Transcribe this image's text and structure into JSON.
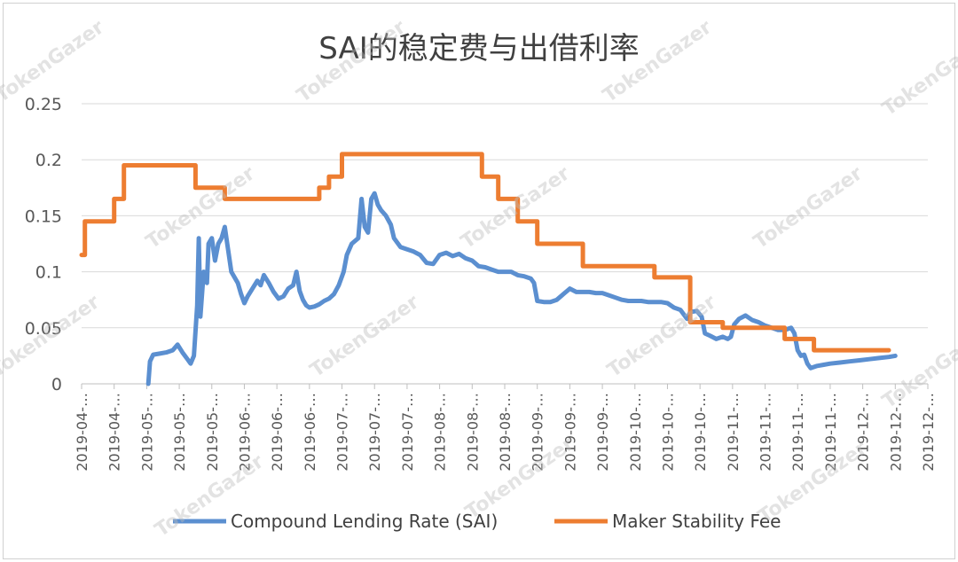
{
  "chart_data": {
    "type": "line",
    "title": "SAI的稳定费与出借利率",
    "xlabel": "",
    "ylabel": "",
    "ylim": [
      0,
      0.25
    ],
    "yticks": [
      "0",
      "0.05",
      "0.1",
      "0.15",
      "0.2",
      "0.25"
    ],
    "grid": true,
    "legend_position": "bottom",
    "x_tick_labels": [
      "2019-04-…",
      "2019-04-…",
      "2019-05-…",
      "2019-05-…",
      "2019-05-…",
      "2019-06-…",
      "2019-06-…",
      "2019-06-…",
      "2019-07-…",
      "2019-07-…",
      "2019-07-…",
      "2019-08-…",
      "2019-08-…",
      "2019-08-…",
      "2019-09-…",
      "2019-09-…",
      "2019-09-…",
      "2019-10-…",
      "2019-10-…",
      "2019-10-…",
      "2019-11-…",
      "2019-11-…",
      "2019-11-…",
      "2019-11-…",
      "2019-12-…",
      "2019-12-…",
      "2019-12-…"
    ],
    "series": [
      {
        "name": "Compound Lending Rate (SAI)",
        "color": "#5B8FD0",
        "points": [
          [
            2.05,
            0.0
          ],
          [
            2.1,
            0.02
          ],
          [
            2.2,
            0.026
          ],
          [
            2.4,
            0.027
          ],
          [
            2.6,
            0.028
          ],
          [
            2.8,
            0.03
          ],
          [
            2.95,
            0.035
          ],
          [
            3.1,
            0.028
          ],
          [
            3.25,
            0.022
          ],
          [
            3.35,
            0.018
          ],
          [
            3.45,
            0.025
          ],
          [
            3.55,
            0.07
          ],
          [
            3.6,
            0.13
          ],
          [
            3.65,
            0.06
          ],
          [
            3.75,
            0.1
          ],
          [
            3.85,
            0.09
          ],
          [
            3.9,
            0.125
          ],
          [
            4.0,
            0.13
          ],
          [
            4.1,
            0.11
          ],
          [
            4.2,
            0.125
          ],
          [
            4.3,
            0.13
          ],
          [
            4.4,
            0.14
          ],
          [
            4.5,
            0.12
          ],
          [
            4.6,
            0.1
          ],
          [
            4.8,
            0.09
          ],
          [
            4.9,
            0.08
          ],
          [
            5.0,
            0.072
          ],
          [
            5.1,
            0.078
          ],
          [
            5.25,
            0.085
          ],
          [
            5.4,
            0.092
          ],
          [
            5.5,
            0.088
          ],
          [
            5.6,
            0.097
          ],
          [
            5.75,
            0.09
          ],
          [
            5.9,
            0.082
          ],
          [
            6.05,
            0.076
          ],
          [
            6.2,
            0.078
          ],
          [
            6.35,
            0.085
          ],
          [
            6.5,
            0.088
          ],
          [
            6.6,
            0.1
          ],
          [
            6.7,
            0.083
          ],
          [
            6.8,
            0.075
          ],
          [
            6.9,
            0.07
          ],
          [
            7.0,
            0.068
          ],
          [
            7.15,
            0.069
          ],
          [
            7.3,
            0.071
          ],
          [
            7.45,
            0.074
          ],
          [
            7.6,
            0.076
          ],
          [
            7.75,
            0.08
          ],
          [
            7.9,
            0.088
          ],
          [
            8.05,
            0.1
          ],
          [
            8.15,
            0.115
          ],
          [
            8.3,
            0.125
          ],
          [
            8.5,
            0.13
          ],
          [
            8.6,
            0.165
          ],
          [
            8.7,
            0.14
          ],
          [
            8.8,
            0.135
          ],
          [
            8.9,
            0.165
          ],
          [
            9.0,
            0.17
          ],
          [
            9.1,
            0.16
          ],
          [
            9.2,
            0.155
          ],
          [
            9.35,
            0.15
          ],
          [
            9.5,
            0.142
          ],
          [
            9.6,
            0.13
          ],
          [
            9.8,
            0.122
          ],
          [
            10.0,
            0.12
          ],
          [
            10.2,
            0.118
          ],
          [
            10.4,
            0.115
          ],
          [
            10.6,
            0.108
          ],
          [
            10.8,
            0.107
          ],
          [
            11.0,
            0.115
          ],
          [
            11.2,
            0.117
          ],
          [
            11.4,
            0.114
          ],
          [
            11.6,
            0.116
          ],
          [
            11.8,
            0.112
          ],
          [
            12.0,
            0.11
          ],
          [
            12.2,
            0.105
          ],
          [
            12.4,
            0.104
          ],
          [
            12.6,
            0.102
          ],
          [
            12.8,
            0.1
          ],
          [
            13.0,
            0.1
          ],
          [
            13.2,
            0.1
          ],
          [
            13.4,
            0.097
          ],
          [
            13.6,
            0.096
          ],
          [
            13.8,
            0.094
          ],
          [
            13.9,
            0.09
          ],
          [
            14.0,
            0.074
          ],
          [
            14.2,
            0.073
          ],
          [
            14.4,
            0.073
          ],
          [
            14.6,
            0.075
          ],
          [
            14.8,
            0.08
          ],
          [
            15.0,
            0.085
          ],
          [
            15.2,
            0.082
          ],
          [
            15.4,
            0.082
          ],
          [
            15.6,
            0.082
          ],
          [
            15.8,
            0.081
          ],
          [
            16.0,
            0.081
          ],
          [
            16.2,
            0.079
          ],
          [
            16.4,
            0.077
          ],
          [
            16.6,
            0.075
          ],
          [
            16.8,
            0.074
          ],
          [
            17.0,
            0.074
          ],
          [
            17.2,
            0.074
          ],
          [
            17.4,
            0.073
          ],
          [
            17.6,
            0.073
          ],
          [
            17.8,
            0.073
          ],
          [
            18.0,
            0.072
          ],
          [
            18.2,
            0.068
          ],
          [
            18.4,
            0.066
          ],
          [
            18.5,
            0.062
          ],
          [
            18.6,
            0.058
          ],
          [
            18.7,
            0.064
          ],
          [
            18.9,
            0.065
          ],
          [
            19.05,
            0.06
          ],
          [
            19.15,
            0.045
          ],
          [
            19.3,
            0.043
          ],
          [
            19.5,
            0.04
          ],
          [
            19.7,
            0.042
          ],
          [
            19.85,
            0.04
          ],
          [
            19.95,
            0.042
          ],
          [
            20.05,
            0.053
          ],
          [
            20.2,
            0.058
          ],
          [
            20.4,
            0.061
          ],
          [
            20.6,
            0.057
          ],
          [
            20.8,
            0.055
          ],
          [
            21.0,
            0.052
          ],
          [
            21.2,
            0.05
          ],
          [
            21.4,
            0.048
          ],
          [
            21.6,
            0.048
          ],
          [
            21.8,
            0.05
          ],
          [
            21.9,
            0.045
          ],
          [
            22.0,
            0.03
          ],
          [
            22.1,
            0.025
          ],
          [
            22.2,
            0.026
          ],
          [
            22.3,
            0.018
          ],
          [
            22.4,
            0.014
          ],
          [
            22.6,
            0.016
          ],
          [
            22.8,
            0.017
          ],
          [
            23.0,
            0.018
          ],
          [
            23.3,
            0.019
          ],
          [
            23.6,
            0.02
          ],
          [
            23.9,
            0.021
          ],
          [
            24.2,
            0.022
          ],
          [
            24.5,
            0.023
          ],
          [
            24.8,
            0.024
          ],
          [
            25.0,
            0.025
          ]
        ]
      },
      {
        "name": "Maker Stability Fee",
        "color": "#ED7D31",
        "points": [
          [
            0.0,
            0.115
          ],
          [
            0.1,
            0.115
          ],
          [
            0.1,
            0.145
          ],
          [
            1.0,
            0.145
          ],
          [
            1.0,
            0.165
          ],
          [
            1.3,
            0.165
          ],
          [
            1.3,
            0.195
          ],
          [
            3.5,
            0.195
          ],
          [
            3.5,
            0.175
          ],
          [
            4.4,
            0.175
          ],
          [
            4.4,
            0.165
          ],
          [
            7.3,
            0.165
          ],
          [
            7.3,
            0.175
          ],
          [
            7.6,
            0.175
          ],
          [
            7.6,
            0.185
          ],
          [
            8.0,
            0.185
          ],
          [
            8.0,
            0.205
          ],
          [
            12.3,
            0.205
          ],
          [
            12.3,
            0.185
          ],
          [
            12.8,
            0.185
          ],
          [
            12.8,
            0.165
          ],
          [
            13.4,
            0.165
          ],
          [
            13.4,
            0.145
          ],
          [
            14.0,
            0.145
          ],
          [
            14.0,
            0.125
          ],
          [
            15.4,
            0.125
          ],
          [
            15.4,
            0.105
          ],
          [
            17.6,
            0.105
          ],
          [
            17.6,
            0.095
          ],
          [
            18.7,
            0.095
          ],
          [
            18.7,
            0.055
          ],
          [
            19.7,
            0.055
          ],
          [
            19.7,
            0.05
          ],
          [
            21.6,
            0.05
          ],
          [
            21.6,
            0.04
          ],
          [
            22.5,
            0.04
          ],
          [
            22.5,
            0.03
          ],
          [
            24.8,
            0.03
          ]
        ]
      }
    ]
  },
  "watermark": "TokenGazer"
}
